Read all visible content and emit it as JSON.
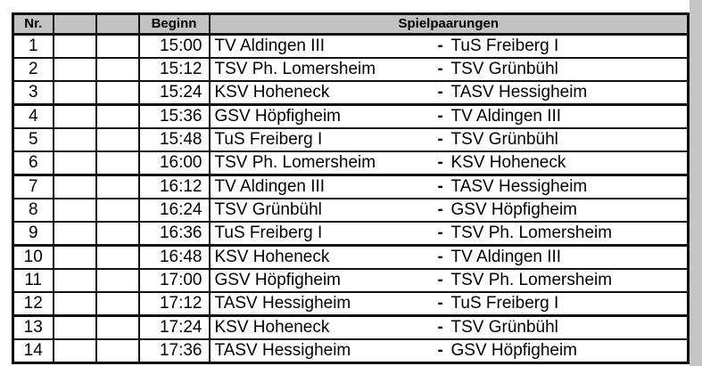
{
  "table": {
    "headers": {
      "nr": "Nr.",
      "empty1": "",
      "empty2": "",
      "beginn": "Beginn",
      "spielpaarungen": "Spielpaarungen"
    },
    "separator": "-",
    "rows": [
      {
        "nr": "1",
        "beginn": "15:00",
        "home": "TV Aldingen III",
        "away": "TuS Freiberg I"
      },
      {
        "nr": "2",
        "beginn": "15:12",
        "home": "TSV Ph. Lomersheim",
        "away": "TSV Grünbühl"
      },
      {
        "nr": "3",
        "beginn": "15:24",
        "home": "KSV Hoheneck",
        "away": "TASV Hessigheim"
      },
      {
        "nr": "4",
        "beginn": "15:36",
        "home": "GSV Höpfigheim",
        "away": "TV Aldingen III"
      },
      {
        "nr": "5",
        "beginn": "15:48",
        "home": "TuS Freiberg I",
        "away": "TSV Grünbühl"
      },
      {
        "nr": "6",
        "beginn": "16:00",
        "home": "TSV Ph. Lomersheim",
        "away": "KSV Hoheneck"
      },
      {
        "nr": "7",
        "beginn": "16:12",
        "home": "TV Aldingen III",
        "away": "TASV Hessigheim"
      },
      {
        "nr": "8",
        "beginn": "16:24",
        "home": "TSV Grünbühl",
        "away": "GSV Höpfigheim"
      },
      {
        "nr": "9",
        "beginn": "16:36",
        "home": "TuS Freiberg I",
        "away": "TSV Ph. Lomersheim"
      },
      {
        "nr": "10",
        "beginn": "16:48",
        "home": "KSV Hoheneck",
        "away": "TV Aldingen III"
      },
      {
        "nr": "11",
        "beginn": "17:00",
        "home": "GSV Höpfigheim",
        "away": "TSV Ph. Lomersheim"
      },
      {
        "nr": "12",
        "beginn": "17:12",
        "home": "TASV Hessigheim",
        "away": "TuS Freiberg I"
      },
      {
        "nr": "13",
        "beginn": "17:24",
        "home": "KSV Hoheneck",
        "away": "TSV Grünbühl"
      },
      {
        "nr": "14",
        "beginn": "17:36",
        "home": "TASV Hessigheim",
        "away": "GSV Höpfigheim"
      }
    ]
  },
  "colors": {
    "header_bg": "#c2c2c2",
    "border": "#111111",
    "side_strip": "#c6c6c6",
    "text": "#000000"
  }
}
